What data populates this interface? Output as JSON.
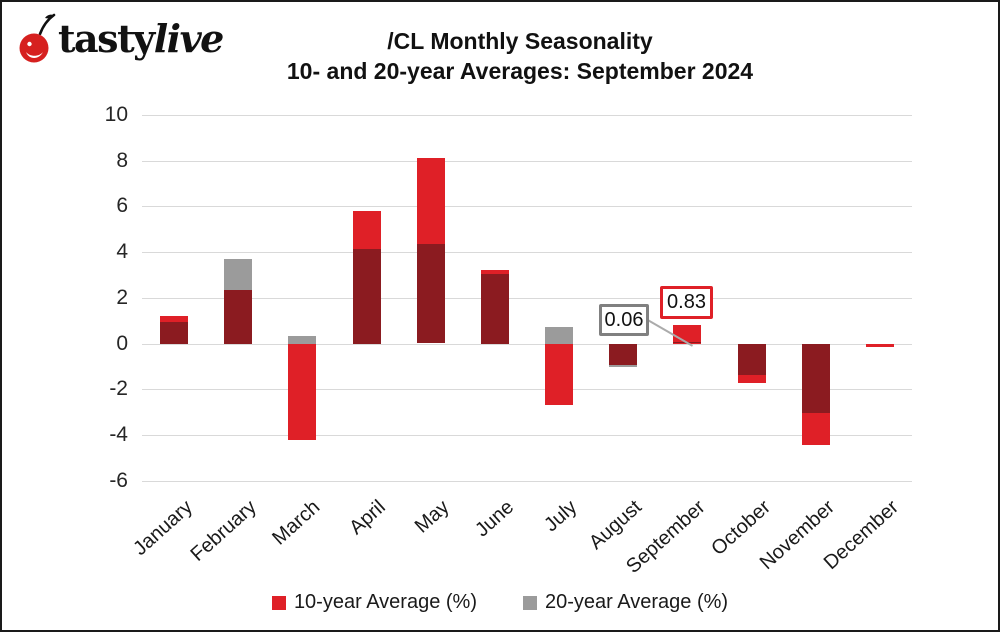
{
  "logo": {
    "icon": "cherry-icon",
    "text_upright": "tasty",
    "text_italic": "live"
  },
  "title": {
    "line1": "/CL Monthly Seasonality",
    "line2": "10- and 20-year Averages: September 2024"
  },
  "chart_data": {
    "type": "bar",
    "title": "/CL Monthly Seasonality",
    "subtitle": "10- and 20-year Averages: September 2024",
    "categories": [
      "January",
      "February",
      "March",
      "April",
      "May",
      "June",
      "July",
      "August",
      "September",
      "October",
      "November",
      "December"
    ],
    "series": [
      {
        "name": "10-year Average (%)",
        "color": "#DF2027",
        "values": [
          1.2,
          2.35,
          -4.2,
          5.8,
          8.1,
          3.2,
          -2.65,
          -0.9,
          0.83,
          -1.7,
          -4.4,
          -0.15
        ]
      },
      {
        "name": "20-year Average (%)",
        "color": "#9B9B9B",
        "values": [
          0.95,
          3.7,
          0.35,
          4.15,
          4.35,
          3.05,
          0.73,
          -1.0,
          0.06,
          -1.35,
          -3.0,
          0
        ]
      }
    ],
    "overlap_color": "#8B1B20",
    "ylim": [
      -6,
      10
    ],
    "ytick_step": 2,
    "yticks": [
      10,
      8,
      6,
      4,
      2,
      0,
      -2,
      -4,
      -6
    ],
    "grid": "horizontal",
    "legend_position": "bottom",
    "annotations": [
      {
        "label": "0.06",
        "target_month": "September",
        "series": "20-year Average (%)",
        "box_border": "#808080"
      },
      {
        "label": "0.83",
        "target_month": "September",
        "series": "10-year Average (%)",
        "box_border": "#DF2027"
      }
    ]
  },
  "legend": {
    "items": [
      {
        "label": "10-year Average (%)",
        "color": "#DF2027"
      },
      {
        "label": "20-year Average (%)",
        "color": "#9B9B9B"
      }
    ]
  },
  "colors": {
    "gridline": "#D9D9D9",
    "axis_text": "#262626",
    "border": "#1A1A1A",
    "leader_line": "#ABABAB"
  }
}
